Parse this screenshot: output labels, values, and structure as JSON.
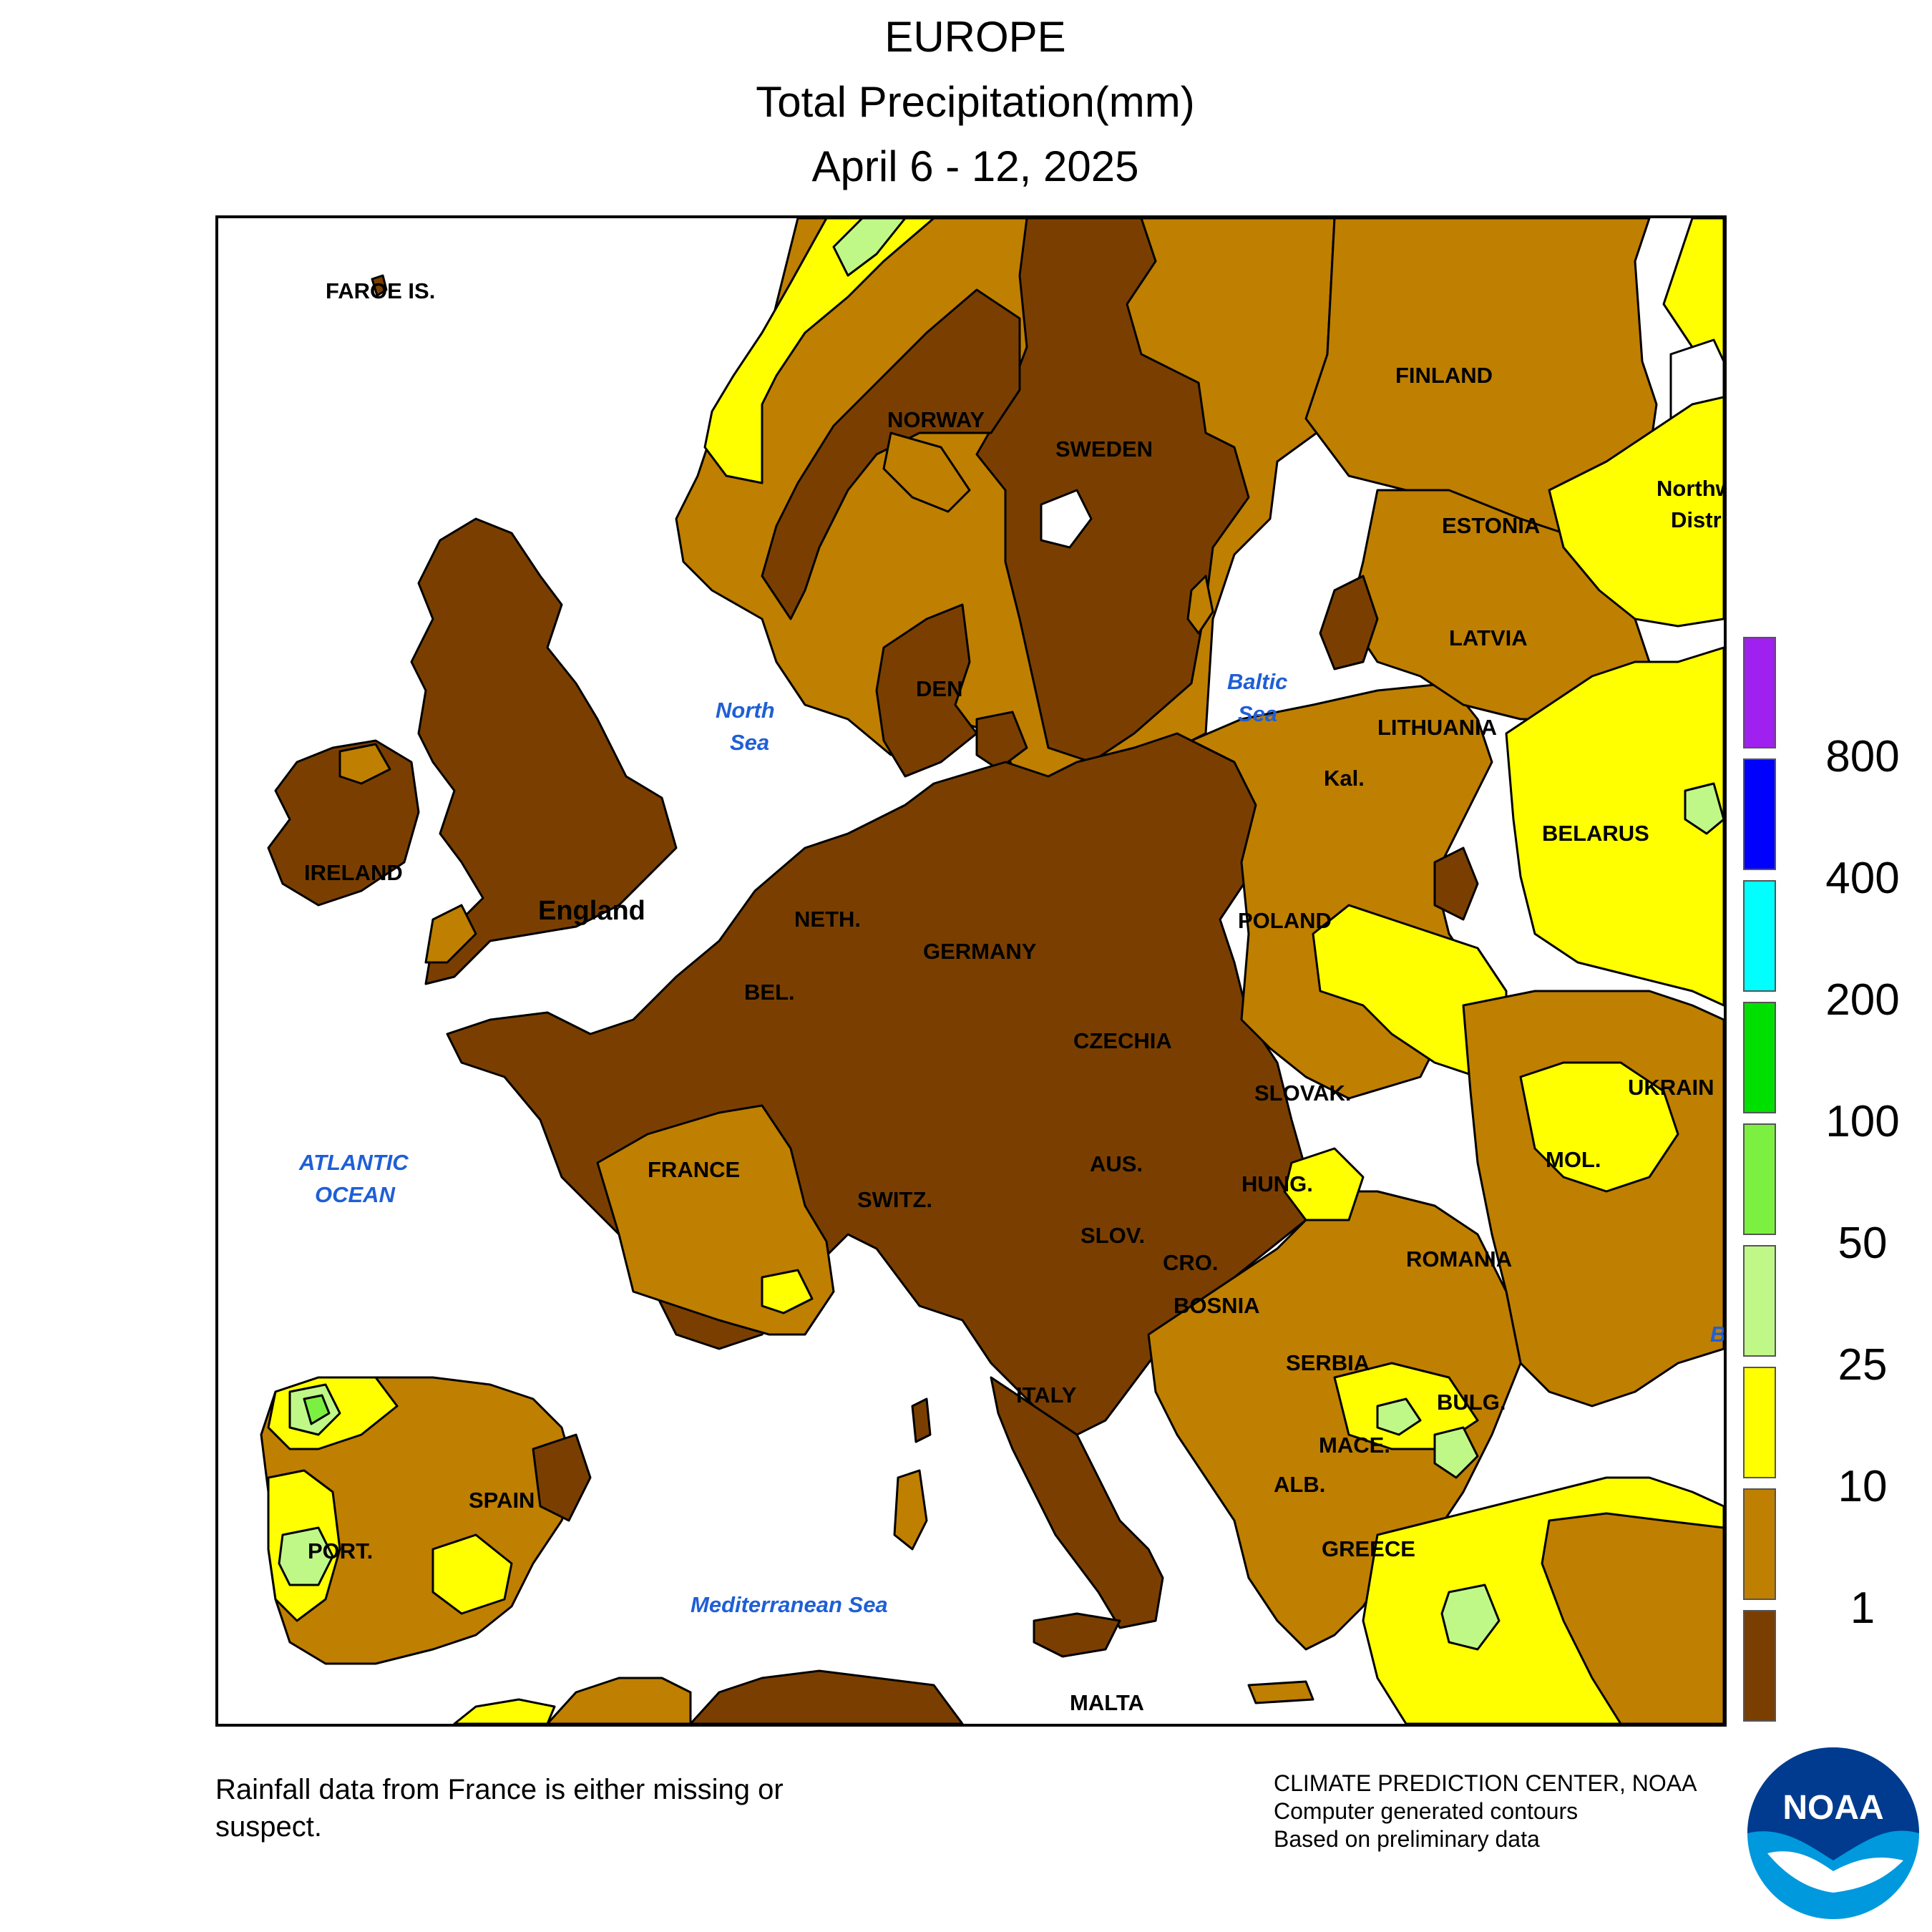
{
  "header": {
    "title": "EUROPE",
    "subtitle": "Total Precipitation(mm)",
    "date_range": "April 6 - 12, 2025"
  },
  "legend": {
    "items": [
      {
        "color": "#a020f0",
        "label": "800"
      },
      {
        "color": "#0000ff",
        "label": "400"
      },
      {
        "color": "#00ffff",
        "label": "200"
      },
      {
        "color": "#00e000",
        "label": "100"
      },
      {
        "color": "#7cf040",
        "label": "50"
      },
      {
        "color": "#c0f888",
        "label": "25"
      },
      {
        "color": "#ffff00",
        "label": "10"
      },
      {
        "color": "#bf7f00",
        "label": "1"
      },
      {
        "color": "#7a3f00",
        "label": ""
      }
    ]
  },
  "map": {
    "labels": {
      "faroe": "FAROE IS.",
      "norway": "NORWAY",
      "sweden": "SWEDEN",
      "finland": "FINLAND",
      "estonia": "ESTONIA",
      "latvia": "LATVIA",
      "lithuania": "LITHUANIA",
      "kaliningrad": "Kal.",
      "belarus": "BELARUS",
      "northwest": "Northw",
      "district": "Distri",
      "denmark": "DEN",
      "ireland": "IRELAND",
      "england": "England",
      "netherlands": "NETH.",
      "belgium": "BEL.",
      "germany": "GERMANY",
      "poland": "POLAND",
      "czechia": "CZECHIA",
      "slovakia": "SLOVAK.",
      "ukraine": "UKRAIN",
      "france": "FRANCE",
      "switzerland": "SWITZ.",
      "austria": "AUS.",
      "hungary": "HUNG.",
      "moldova": "MOL.",
      "slovenia": "SLOV.",
      "croatia": "CRO.",
      "bosnia": "BOSNIA",
      "romania": "ROMANIA",
      "serbia": "SERBIA",
      "bulgaria": "BULG.",
      "macedonia": "MACE.",
      "albania": "ALB.",
      "greece": "GREECE",
      "italy": "ITALY",
      "spain": "SPAIN",
      "portugal": "PORT.",
      "malta": "MALTA"
    },
    "seas": {
      "north_sea_1": "North",
      "north_sea_2": "Sea",
      "baltic_1": "Baltic",
      "baltic_2": "Sea",
      "atlantic_1": "ATLANTIC",
      "atlantic_2": "OCEAN",
      "mediterranean": "Mediterranean Sea",
      "black_sea_partial": "B"
    }
  },
  "footer": {
    "note_line1": "Rainfall data from France is either missing or",
    "note_line2": "suspect.",
    "credit_line1": "CLIMATE PREDICTION CENTER, NOAA",
    "credit_line2": "Computer generated contours",
    "credit_line3": "Based on preliminary data",
    "logo_text": "NOAA"
  }
}
